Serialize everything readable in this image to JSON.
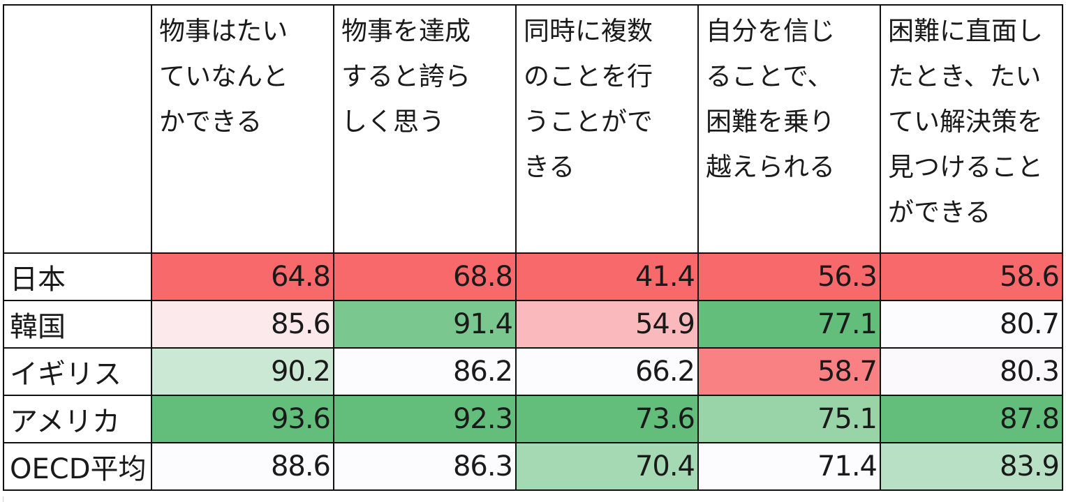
{
  "chart_data": {
    "type": "table",
    "columns": [
      "物事はたいていなんとかできる",
      "物事を達成すると誇らしく思う",
      "同時に複数のことを行うことができる",
      "自分を信じることで、困難を乗り越えられる",
      "困難に直面したとき、たいてい解決策を見つけることができる"
    ],
    "column_lines": [
      [
        "物事はたい",
        "ていなんと",
        "かできる"
      ],
      [
        "物事を達成",
        "すると誇ら",
        "しく思う"
      ],
      [
        "同時に複数",
        "のことを行",
        "うことがで",
        "きる"
      ],
      [
        "自分を信じ",
        "ることで、",
        "困難を乗り",
        "越えられる"
      ],
      [
        "困難に直面し",
        "たとき、たい",
        "てい解決策を",
        "見つけること",
        "ができる"
      ]
    ],
    "rows": [
      {
        "label": "日本",
        "values": [
          "64.8",
          "68.8",
          "41.4",
          "56.3",
          "58.6"
        ]
      },
      {
        "label": "韓国",
        "values": [
          "85.6",
          "91.4",
          "54.9",
          "77.1",
          "80.7"
        ]
      },
      {
        "label": "イギリス",
        "values": [
          "90.2",
          "86.2",
          "66.2",
          "58.7",
          "80.3"
        ]
      },
      {
        "label": "アメリカ",
        "values": [
          "93.6",
          "92.3",
          "73.6",
          "75.1",
          "87.8"
        ]
      },
      {
        "label": "OECD平均",
        "values": [
          "88.6",
          "86.3",
          "70.4",
          "71.4",
          "83.9"
        ]
      }
    ],
    "color_scale": {
      "low_color": "#f8696b",
      "mid_color": "#fcfcff",
      "high_color": "#63be7b"
    }
  }
}
